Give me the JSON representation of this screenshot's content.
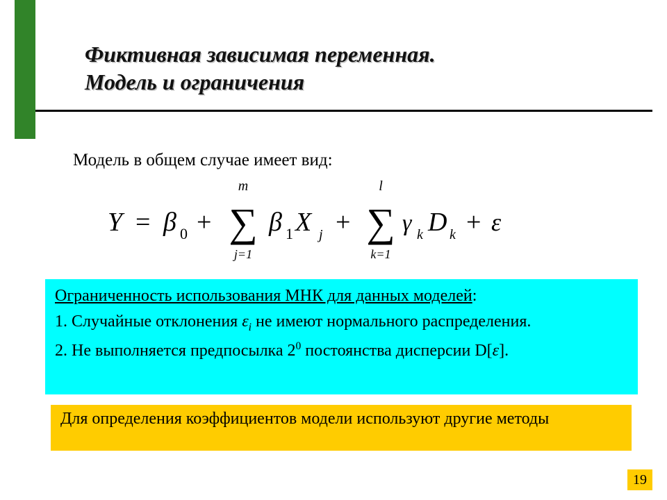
{
  "title": {
    "line1": "Фиктивная зависимая переменная.",
    "line2": "Модель и ограничения"
  },
  "intro": "Модель в общем случае имеет вид:",
  "formula": {
    "lhs": "Y",
    "terms": [
      {
        "coef": "β",
        "coef_sub": "0"
      },
      {
        "type": "sum",
        "upper": "m",
        "lower": "j=1",
        "coef": "β",
        "coef_sub": "1",
        "var": "X",
        "var_sub": "j"
      },
      {
        "type": "sum",
        "upper": "l",
        "lower": "k=1",
        "coef": "γ",
        "coef_sub": "k",
        "var": "D",
        "var_sub": "k"
      },
      {
        "coef": "ε"
      }
    ]
  },
  "cyan": {
    "header": "Ограниченность использования МНК для данных моделей",
    "header_colon": ":",
    "item1a": "1. Случайные отклонения ",
    "item1_eps": "ε",
    "item1_sub": "i",
    "item1b": " не имеют нормального распределения.",
    "item2a": "2. Не выполняется предпосылка 2",
    "item2_sup": "0",
    "item2b": " постоянства дисперсии D[",
    "item2_eps": "ε",
    "item2c": "]."
  },
  "yellow": "Для определения коэффициентов модели используют другие методы",
  "pagenum": "19",
  "colors": {
    "green": "#318429",
    "cyan": "#00ffff",
    "amber": "#ffcc00",
    "text": "#000000",
    "bg": "#ffffff"
  }
}
